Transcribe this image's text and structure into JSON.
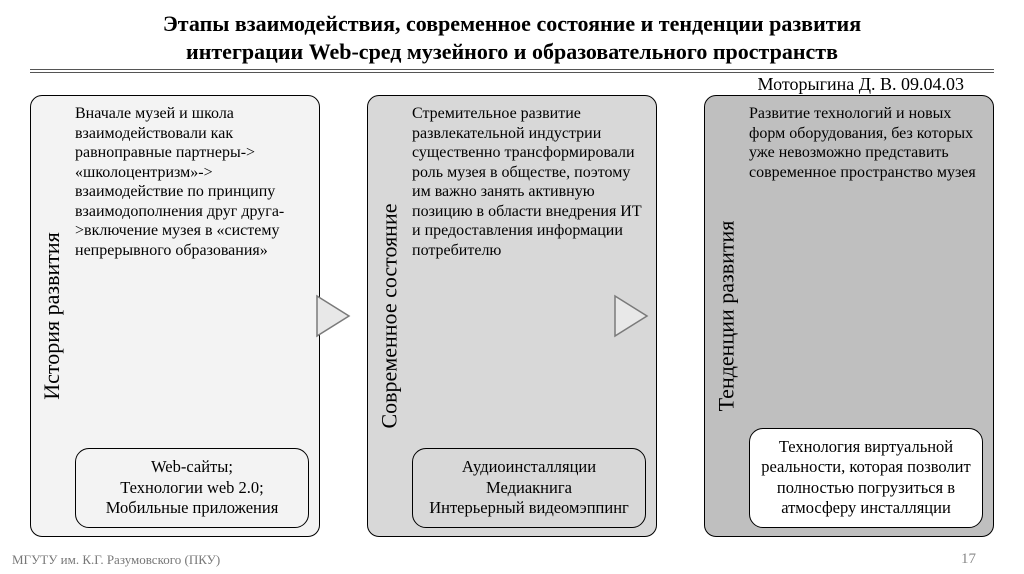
{
  "title_line1": "Этапы взаимодействия, современное состояние и тенденции развития",
  "title_line2": "интеграции Web-сред музейного и образовательного пространств",
  "title_fontsize": 22,
  "author": "Моторыгина Д. В. 09.04.03",
  "columns": [
    {
      "bg": "#f3f3f3",
      "label": "История развития",
      "text": "Вначале музей и школа взаимодействовали как равноправные партнеры-> «школоцентризм»-> взаимодействие по принципу взаимодополнения друг друга->включение музея в «систему непрерывного образования»",
      "subbox": "Web-сайты;\nТехнологии web 2.0;\nМобильные приложения",
      "subbox_lines": 4
    },
    {
      "bg": "#d8d8d8",
      "label": "Современное состояние",
      "text": "Стремительное развитие развлекательной индустрии существенно трансформировали роль музея в обществе, поэтому им важно занять активную позицию в области внедрения ИТ и предоставления информации потребителю",
      "subbox": "Аудиоинсталляции\nМедиакнига\nИнтерьерный видеомэппинг",
      "subbox_lines": 4
    },
    {
      "bg": "#bfbfbf",
      "label": "Тенденции развития",
      "text": "Развитие технологий и новых форм оборудования, без которых уже невозможно представить современное пространство музея",
      "subbox": "Технология виртуальной реальности, которая позволит полностью погрузиться в атмосферу инсталляции",
      "subbox_lines": 6
    }
  ],
  "arrow": {
    "fill": "#e8e8e8",
    "stroke": "#7a7a7a",
    "width": 40,
    "height": 48
  },
  "footer_left": "МГУТУ им. К.Г. Разумовского (ПКУ)",
  "page_number": "17"
}
